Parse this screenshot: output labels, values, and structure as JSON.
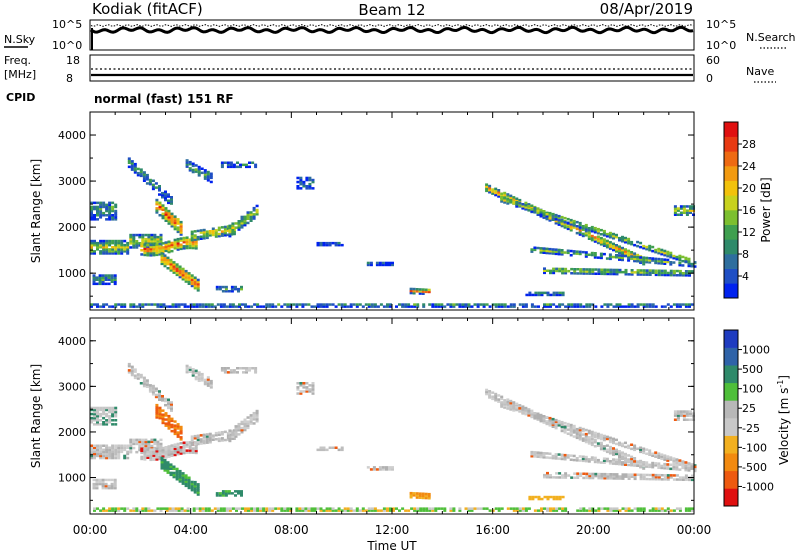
{
  "header": {
    "station": "Kodiak (fitACF)",
    "beam": "Beam 12",
    "date": "08/Apr/2019"
  },
  "noise_panel": {
    "left_label": "N.Sky",
    "right_label": "N.Search",
    "left_ticks": [
      "10^5",
      "10^0"
    ],
    "right_ticks": [
      "10^5",
      "10^0"
    ]
  },
  "freq_panel": {
    "left_label_1": "Freq.",
    "left_label_2": "[MHz]",
    "right_label": "Nave",
    "left_ticks": [
      "18",
      "8"
    ],
    "right_ticks": [
      "60",
      "0"
    ]
  },
  "cpid": {
    "label": "CPID",
    "value": "normal (fast) 151 RF"
  },
  "chart_data": [
    {
      "type": "heatmap",
      "name_shown": "Power",
      "ylabel": "Slant Range [km]",
      "xlabel": "",
      "ylim": [
        200,
        4500
      ],
      "xlim_hours": [
        0,
        24
      ],
      "yticks": [
        "1000",
        "2000",
        "3000",
        "4000"
      ],
      "colorbar": {
        "label": "Power [dB]",
        "range": [
          0,
          32
        ],
        "ticks": [
          "4",
          "8",
          "12",
          "16",
          "20",
          "24",
          "28"
        ],
        "colors": [
          "#0022ee",
          "#1f4fc4",
          "#2e6e9e",
          "#2f8a6a",
          "#3f9f4f",
          "#7cbf2f",
          "#c8d21e",
          "#f2c20c",
          "#f29a10",
          "#ee6a12",
          "#e83a12",
          "#e01010"
        ]
      }
    },
    {
      "type": "heatmap",
      "name_shown": "Velocity",
      "ylabel": "Slant Range [km]",
      "xlabel": "Time UT",
      "ylim": [
        200,
        4500
      ],
      "xlim_hours": [
        0,
        24
      ],
      "yticks": [
        "1000",
        "2000",
        "3000",
        "4000"
      ],
      "xticks": [
        "00:00",
        "04:00",
        "08:00",
        "12:00",
        "16:00",
        "20:00",
        "00:00"
      ],
      "colorbar": {
        "label": "Velocity [m s",
        "label_sup": "-1",
        "label_end": "]",
        "ticks": [
          "1000",
          "500",
          "100",
          "25",
          "-25",
          "-100",
          "-500",
          "-1000"
        ],
        "colors": [
          "#1f3cc0",
          "#2f63a8",
          "#2f8a6a",
          "#4fbf3a",
          "#b8b8b8",
          "#c8c8c8",
          "#f2b020",
          "#f28a10",
          "#ee5a10",
          "#e01010"
        ]
      }
    }
  ]
}
